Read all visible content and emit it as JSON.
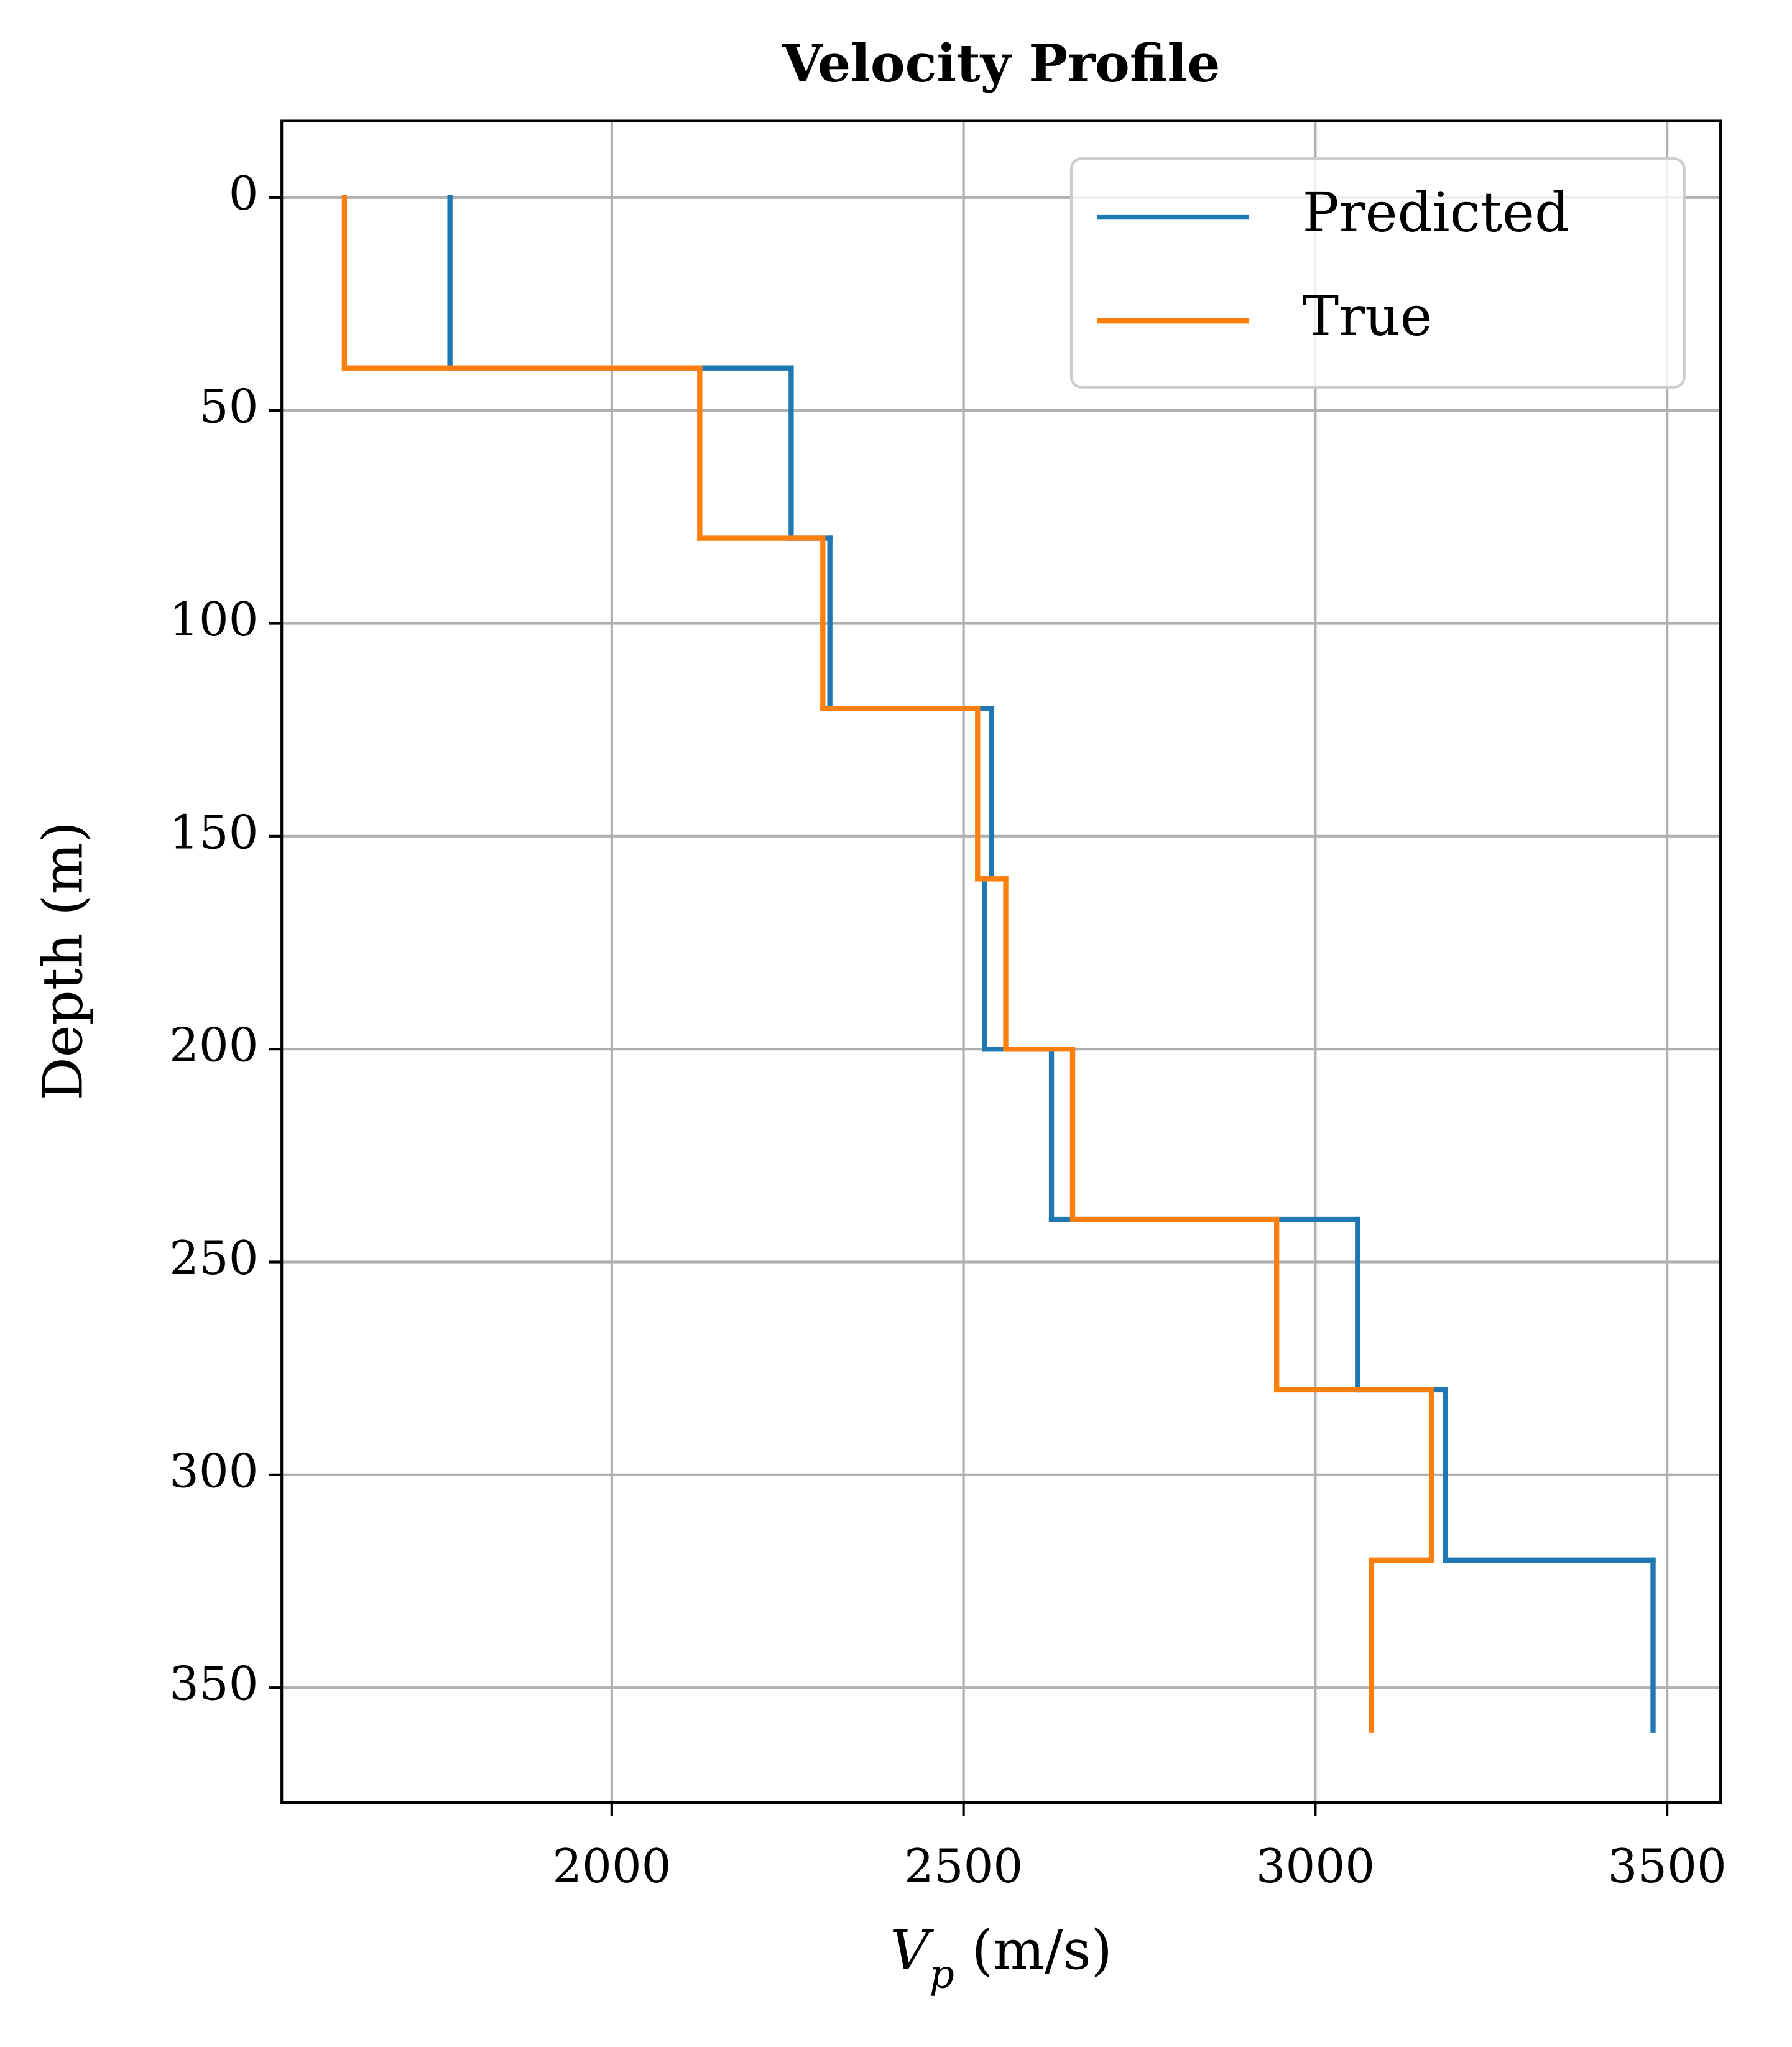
{
  "chart_data": {
    "type": "step",
    "title": "Velocity Profile",
    "xlabel": "Vp (m/s)",
    "ylabel": "Depth (m)",
    "depths": [
      0,
      40,
      80,
      120,
      160,
      200,
      240,
      280,
      320,
      360
    ],
    "series": [
      {
        "name": "Predicted",
        "color": "#1f77b4",
        "values": [
          1770,
          2255,
          2310,
          2540,
          2530,
          2625,
          3060,
          3185,
          3480
        ]
      },
      {
        "name": "True",
        "color": "#ff7f0e",
        "values": [
          1620,
          2125,
          2300,
          2520,
          2560,
          2655,
          2945,
          3165,
          3080
        ]
      }
    ],
    "xlim": [
      1531,
      3576
    ],
    "xticks": [
      2000,
      2500,
      3000,
      3500
    ],
    "ylim": [
      -18,
      377
    ],
    "yticks": [
      0,
      50,
      100,
      150,
      200,
      250,
      300,
      350
    ],
    "y_inverted": true,
    "grid": true,
    "legend": "upper right"
  }
}
